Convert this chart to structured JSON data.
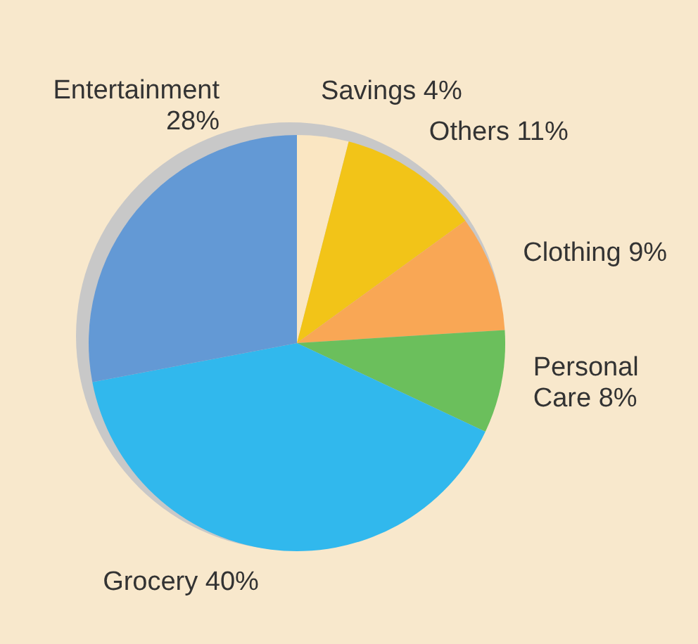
{
  "chart_data": {
    "type": "pie",
    "categories": [
      "Savings",
      "Others",
      "Clothing",
      "Personal Care",
      "Grocery",
      "Entertainment"
    ],
    "values": [
      4,
      11,
      9,
      8,
      40,
      28
    ],
    "value_labels": [
      "4%",
      "11%",
      "9%",
      "8%",
      "40%",
      "28%"
    ],
    "colors": [
      "#fae6c2",
      "#f2c418",
      "#f9a755",
      "#6bbf5c",
      "#31b8ed",
      "#6399d5"
    ],
    "legend": false
  }
}
